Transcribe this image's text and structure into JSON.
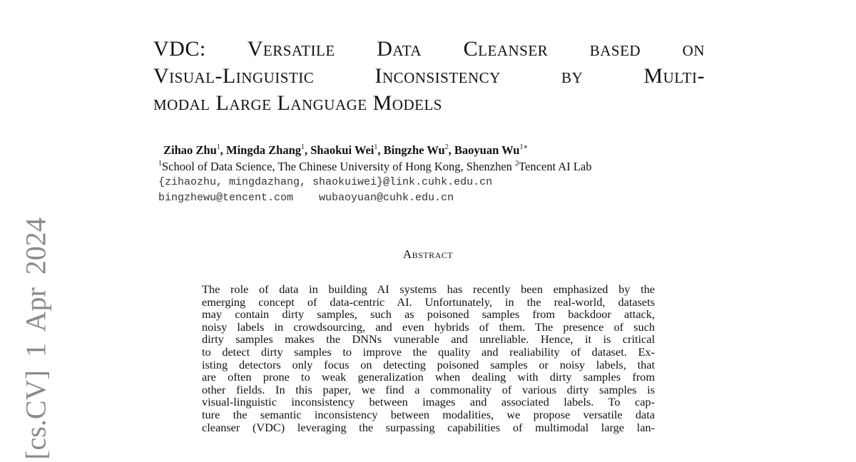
{
  "title_lines": [
    "VDC: Versatile Data Cleanser based on",
    "Visual-Linguistic Inconsistency by Multi-",
    "modal Large Language Models"
  ],
  "authors": [
    {
      "name": "Zihao Zhu",
      "sup": "1"
    },
    {
      "name": "Mingda Zhang",
      "sup": "1"
    },
    {
      "name": "Shaokui Wei",
      "sup": "1"
    },
    {
      "name": "Bingzhe Wu",
      "sup": "2"
    },
    {
      "name": "Baoyuan Wu",
      "sup": "1∗"
    }
  ],
  "affiliations": [
    {
      "sup": "1",
      "text": "School of Data Science, The Chinese University of Hong Kong, Shenzhen "
    },
    {
      "sup": "2",
      "text": "Tencent AI Lab"
    }
  ],
  "emails": [
    "{zihaozhu, mingdazhang, shaokuiwei}@link.cuhk.edu.cn",
    "bingzhewu@tencent.com    wubaoyuan@cuhk.edu.cn"
  ],
  "abstract_heading": "Abstract",
  "abstract_lines": [
    "The role of data in building AI systems has recently been emphasized by the",
    "emerging concept of data-centric AI. Unfortunately, in the real-world, datasets",
    "may contain dirty samples, such as poisoned samples from backdoor attack,",
    "noisy labels in crowdsourcing, and even hybrids of them. The presence of such",
    "dirty samples makes the DNNs vunerable and unreliable. Hence, it is critical",
    "to detect dirty samples to improve the quality and realiability of dataset. Ex-",
    "isting detectors only focus on detecting poisoned samples or noisy labels, that",
    "are often prone to weak generalization when dealing with dirty samples from",
    "other fields. In this paper, we find a commonality of various dirty samples is",
    "visual-linguistic inconsistency between images and associated labels. To cap-",
    "ture the semantic inconsistency between modalities, we propose versatile data",
    "cleanser (VDC) leveraging the surpassing capabilities of multimodal large lan-"
  ],
  "arxiv_stamp": "[cs.CV]  1 Apr 2024"
}
